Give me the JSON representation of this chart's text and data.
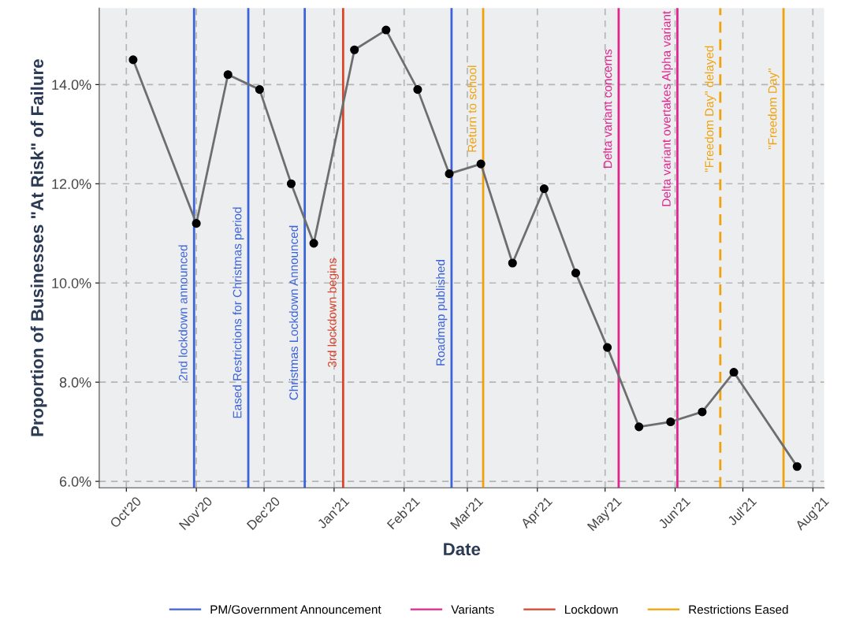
{
  "chart_data": {
    "type": "line",
    "xlabel": "Date",
    "ylabel": "Proportion of Businesses \"At Risk\" of Failure",
    "x": [
      "2020-10-04",
      "2020-11-01",
      "2020-11-15",
      "2020-11-29",
      "2020-12-13",
      "2020-12-23",
      "2021-01-10",
      "2021-01-24",
      "2021-02-07",
      "2021-02-21",
      "2021-03-07",
      "2021-03-21",
      "2021-04-04",
      "2021-04-18",
      "2021-05-02",
      "2021-05-16",
      "2021-05-30",
      "2021-06-13",
      "2021-06-27",
      "2021-07-25"
    ],
    "series": [
      {
        "color": "#6e6e6e",
        "marker": "circle",
        "values": [
          14.5,
          11.2,
          14.2,
          13.9,
          12.0,
          10.8,
          14.7,
          15.1,
          13.9,
          12.2,
          12.4,
          10.4,
          11.9,
          10.2,
          8.7,
          7.1,
          7.2,
          7.4,
          8.2,
          6.3
        ]
      },
      {
        "name": "PM/Government Announcement",
        "color": "#3d63d8",
        "values": [
          null,
          null,
          null,
          null,
          null,
          null,
          null,
          null,
          null,
          null,
          null,
          null,
          null,
          null,
          null,
          null,
          null,
          null,
          null,
          null
        ]
      },
      {
        "name": "Variants",
        "color": "#e0268e",
        "values": [
          null,
          null,
          null,
          null,
          null,
          null,
          null,
          null,
          null,
          null,
          null,
          null,
          null,
          null,
          null,
          null,
          null,
          null,
          null,
          null
        ]
      },
      {
        "name": "Lockdown",
        "color": "#d9442b",
        "values": [
          null,
          null,
          null,
          null,
          null,
          null,
          null,
          null,
          null,
          null,
          null,
          null,
          null,
          null,
          null,
          null,
          null,
          null,
          null,
          null
        ]
      },
      {
        "name": "Restrictions Eased",
        "color": "#f0a20a",
        "values": [
          null,
          null,
          null,
          null,
          null,
          null,
          null,
          null,
          null,
          null,
          null,
          null,
          null,
          null,
          null,
          null,
          null,
          null,
          null,
          null
        ]
      }
    ],
    "ref_lines": [
      {
        "axis": "x",
        "value": "2020-10-31",
        "label": "2nd lockdown announced",
        "color": "#3d63d8",
        "line_style": "solid"
      },
      {
        "axis": "x",
        "value": "2020-11-24",
        "label": "Eased Restrictions for Christmas period",
        "color": "#3d63d8",
        "line_style": "solid"
      },
      {
        "axis": "x",
        "value": "2020-12-19",
        "label": "Christmas Lockdown Announced",
        "color": "#3d63d8",
        "line_style": "solid"
      },
      {
        "axis": "x",
        "value": "2021-01-05",
        "label": "3rd lockdown begins",
        "color": "#d9442b",
        "line_style": "solid"
      },
      {
        "axis": "x",
        "value": "2021-02-22",
        "label": "Roadmap published",
        "color": "#3d63d8",
        "line_style": "solid"
      },
      {
        "axis": "x",
        "value": "2021-03-08",
        "label": "Return to school",
        "color": "#f0a20a",
        "line_style": "solid"
      },
      {
        "axis": "x",
        "value": "2021-05-07",
        "label": "Delta variant concerns",
        "color": "#e0268e",
        "line_style": "solid"
      },
      {
        "axis": "x",
        "value": "2021-06-02",
        "label": "Delta variant overtakes Alpha variant",
        "color": "#e0268e",
        "line_style": "solid"
      },
      {
        "axis": "x",
        "value": "2021-06-21",
        "label": "\"Freedom Day\" delayed",
        "color": "#f0a20a",
        "line_style": "dashed"
      },
      {
        "axis": "x",
        "value": "2021-07-19",
        "label": "\"Freedom Day\"",
        "color": "#f0a20a",
        "line_style": "solid"
      }
    ],
    "xlim": [
      "2020-09-19",
      "2021-08-06"
    ],
    "xticks": [
      {
        "value": "2020-10-01",
        "label": "Oct'20"
      },
      {
        "value": "2020-11-01",
        "label": "Nov'20"
      },
      {
        "value": "2020-12-01",
        "label": "Dec'20"
      },
      {
        "value": "2021-01-01",
        "label": "Jan'21"
      },
      {
        "value": "2021-02-01",
        "label": "Feb'21"
      },
      {
        "value": "2021-03-01",
        "label": "Mar'21"
      },
      {
        "value": "2021-04-01",
        "label": "Apr'21"
      },
      {
        "value": "2021-05-01",
        "label": "May'21"
      },
      {
        "value": "2021-06-01",
        "label": "Jun'21"
      },
      {
        "value": "2021-07-01",
        "label": "Jul'21"
      },
      {
        "value": "2021-08-01",
        "label": "Aug'21"
      }
    ],
    "ylim": [
      5.87,
      15.54
    ],
    "yticks": [
      {
        "value": 6,
        "label": "6.0%"
      },
      {
        "value": 8,
        "label": "8.0%"
      },
      {
        "value": 10,
        "label": "10.0%"
      },
      {
        "value": 12,
        "label": "12.0%"
      },
      {
        "value": 14,
        "label": "14.0%"
      }
    ],
    "grid": true,
    "legend": "bottom"
  }
}
